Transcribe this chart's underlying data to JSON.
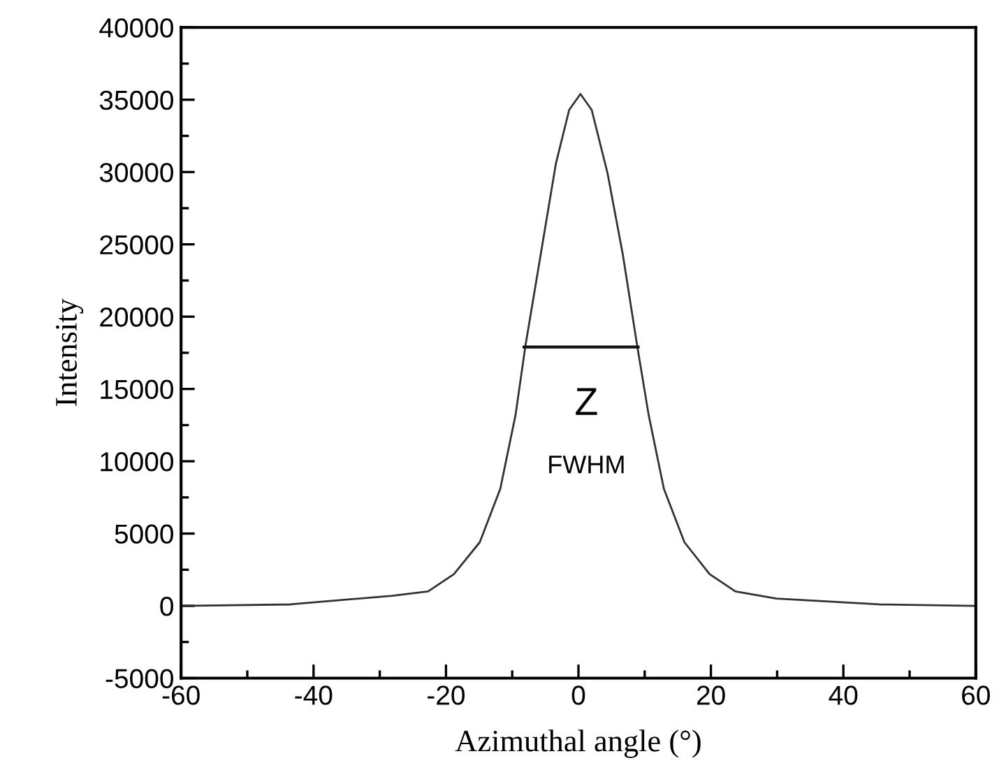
{
  "chart_data": {
    "type": "line",
    "xlabel": "Azimuthal angle (°)",
    "ylabel": "Intensity",
    "series": [
      {
        "color": "#333333",
        "x": [
          -60,
          -43.5,
          -28.1,
          -22.7,
          -18.8,
          -14.9,
          -11.8,
          -9.5,
          -8.0,
          -5.7,
          -3.4,
          -1.4,
          0.3,
          2.0,
          4.4,
          6.7,
          8.9,
          10.6,
          12.9,
          16.0,
          19.8,
          23.7,
          29.9,
          45.4,
          60
        ],
        "values": [
          0,
          100,
          700,
          1000,
          2200,
          4400,
          8100,
          13200,
          18000,
          24300,
          30600,
          34300,
          35400,
          34300,
          29900,
          24300,
          17900,
          13200,
          8100,
          4400,
          2200,
          1000,
          500,
          100,
          0
        ]
      },
      {
        "color": "#111111",
        "x": [
          -8.2,
          9.0
        ],
        "values": [
          17900,
          17900
        ]
      }
    ],
    "annotations": [
      "Z",
      "FWHM"
    ],
    "xlim": [
      -60,
      60
    ],
    "xticks": [
      -60,
      {
        "value": -50,
        "label": null
      },
      -40,
      {
        "value": -30,
        "label": null
      },
      -20,
      {
        "value": -10,
        "label": null
      },
      0,
      {
        "value": 10,
        "label": null
      },
      20,
      {
        "value": 30,
        "label": null
      },
      40,
      {
        "value": 50,
        "label": null
      },
      60
    ],
    "ylim": [
      -5000,
      40000
    ],
    "yticks": [
      -5000,
      {
        "value": -2500,
        "label": null
      },
      0,
      {
        "value": 2500,
        "label": null
      },
      5000,
      {
        "value": 7500,
        "label": null
      },
      10000,
      {
        "value": 12500,
        "label": null
      },
      15000,
      {
        "value": 17500,
        "label": null
      },
      20000,
      {
        "value": 22500,
        "label": null
      },
      25000,
      {
        "value": 27500,
        "label": null
      },
      30000,
      {
        "value": 32500,
        "label": null
      },
      35000,
      {
        "value": 37500,
        "label": null
      },
      40000
    ],
    "grid": false,
    "marker": "none",
    "line_style": "solid"
  }
}
